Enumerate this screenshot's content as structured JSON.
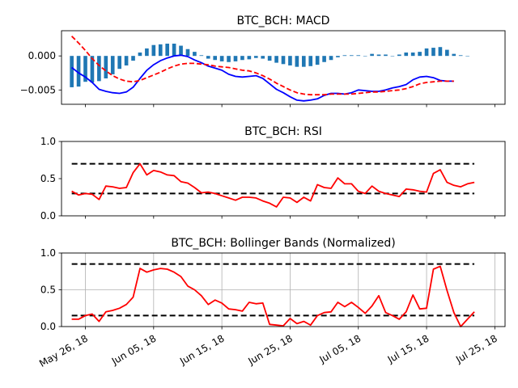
{
  "chart_data": [
    {
      "type": "bar+line",
      "title": "BTC_BCH: MACD",
      "x_start": "2018-05-24",
      "x_interval_days": 1,
      "ylim": [
        -0.0071,
        0.0037
      ],
      "yticks": [
        0.0,
        -0.005
      ],
      "ytick_labels": [
        "0.000",
        "−0.005"
      ],
      "grid": false,
      "series": [
        {
          "kind": "bar",
          "color": "#1f77b4",
          "values": [
            -0.0046,
            -0.0045,
            -0.0038,
            -0.0039,
            -0.0037,
            -0.0033,
            -0.0027,
            -0.0019,
            -0.0014,
            -0.0007,
            0.0005,
            0.0011,
            0.0016,
            0.0017,
            0.0018,
            0.0018,
            0.0015,
            0.001,
            0.0006,
            0.0001,
            -0.0004,
            -0.0006,
            -0.0008,
            -0.0009,
            -0.0008,
            -0.0006,
            -0.0005,
            -0.0003,
            -0.0004,
            -0.0007,
            -0.001,
            -0.0012,
            -0.0014,
            -0.0016,
            -0.0016,
            -0.0015,
            -0.0013,
            -0.0009,
            -0.0006,
            -0.0002,
            0.0001,
            0.0001,
            0.0001,
            0.0,
            0.0003,
            0.0002,
            0.0002,
            0.0,
            0.0002,
            0.0005,
            0.0005,
            0.0006,
            0.0011,
            0.0012,
            0.0013,
            0.0009,
            0.0003,
            0.0001,
            0.0
          ]
        },
        {
          "kind": "line",
          "color": "#0000ff",
          "style": "solid",
          "values": [
            -0.0017,
            -0.0025,
            -0.0031,
            -0.0039,
            -0.0049,
            -0.0052,
            -0.0054,
            -0.0055,
            -0.0053,
            -0.0046,
            -0.0033,
            -0.0021,
            -0.0013,
            -0.0007,
            -0.0003,
            0.0,
            0.0001,
            -0.0001,
            -0.0006,
            -0.001,
            -0.0015,
            -0.0018,
            -0.0021,
            -0.0027,
            -0.003,
            -0.0031,
            -0.003,
            -0.0029,
            -0.0033,
            -0.0041,
            -0.0049,
            -0.0054,
            -0.006,
            -0.0065,
            -0.0066,
            -0.0065,
            -0.0063,
            -0.0058,
            -0.0055,
            -0.0055,
            -0.0056,
            -0.0054,
            -0.005,
            -0.0051,
            -0.0052,
            -0.0052,
            -0.005,
            -0.0047,
            -0.0045,
            -0.0042,
            -0.0035,
            -0.0031,
            -0.003,
            -0.0032,
            -0.0036,
            -0.0037,
            -0.0037
          ]
        },
        {
          "kind": "line",
          "color": "#ff0000",
          "style": "dashed",
          "values": [
            0.0029,
            0.0019,
            0.0008,
            -0.0004,
            -0.0014,
            -0.0022,
            -0.0029,
            -0.0034,
            -0.0037,
            -0.0038,
            -0.0036,
            -0.0032,
            -0.0028,
            -0.0024,
            -0.0019,
            -0.0015,
            -0.0012,
            -0.0011,
            -0.0011,
            -0.0012,
            -0.0013,
            -0.0015,
            -0.0016,
            -0.0017,
            -0.0019,
            -0.0021,
            -0.0022,
            -0.0025,
            -0.0029,
            -0.0034,
            -0.004,
            -0.0045,
            -0.005,
            -0.0054,
            -0.0056,
            -0.0057,
            -0.0057,
            -0.0057,
            -0.0056,
            -0.0056,
            -0.0056,
            -0.0056,
            -0.0055,
            -0.0054,
            -0.0053,
            -0.0053,
            -0.0052,
            -0.0051,
            -0.005,
            -0.0048,
            -0.0045,
            -0.0041,
            -0.0039,
            -0.0038,
            -0.0037,
            -0.0037,
            -0.0037
          ]
        }
      ]
    },
    {
      "type": "line",
      "title": "BTC_BCH: RSI",
      "x_start": "2018-05-24",
      "x_interval_days": 1,
      "ylim": [
        0.0,
        1.0
      ],
      "yticks": [
        0.0,
        0.5,
        1.0
      ],
      "ytick_labels": [
        "0.0",
        "0.5",
        "1.0"
      ],
      "grid": false,
      "reference_lines": [
        0.7,
        0.3
      ],
      "series": [
        {
          "kind": "line",
          "color": "#ff0000",
          "style": "solid",
          "values": [
            0.33,
            0.28,
            0.3,
            0.29,
            0.22,
            0.4,
            0.39,
            0.37,
            0.38,
            0.58,
            0.7,
            0.55,
            0.61,
            0.59,
            0.55,
            0.54,
            0.46,
            0.44,
            0.38,
            0.31,
            0.32,
            0.3,
            0.27,
            0.24,
            0.21,
            0.25,
            0.25,
            0.24,
            0.2,
            0.17,
            0.12,
            0.25,
            0.24,
            0.18,
            0.25,
            0.2,
            0.42,
            0.38,
            0.37,
            0.51,
            0.43,
            0.43,
            0.33,
            0.3,
            0.4,
            0.33,
            0.3,
            0.28,
            0.26,
            0.36,
            0.35,
            0.33,
            0.32,
            0.57,
            0.62,
            0.45,
            0.41,
            0.39,
            0.43,
            0.45
          ]
        }
      ]
    },
    {
      "type": "line",
      "title": "BTC_BCH: Bollinger Bands (Normalized)",
      "x_start": "2018-05-24",
      "x_interval_days": 1,
      "ylim": [
        0.0,
        1.0
      ],
      "yticks": [
        0.0,
        0.5,
        1.0
      ],
      "ytick_labels": [
        "0.0",
        "0.5",
        "1.0"
      ],
      "grid": true,
      "reference_lines": [
        0.85,
        0.15
      ],
      "series": [
        {
          "kind": "line",
          "color": "#ff0000",
          "style": "solid",
          "values": [
            0.1,
            0.1,
            0.15,
            0.17,
            0.07,
            0.2,
            0.22,
            0.25,
            0.3,
            0.4,
            0.79,
            0.74,
            0.77,
            0.79,
            0.78,
            0.74,
            0.68,
            0.55,
            0.5,
            0.42,
            0.3,
            0.36,
            0.32,
            0.24,
            0.23,
            0.21,
            0.33,
            0.31,
            0.32,
            0.03,
            0.02,
            0.01,
            0.11,
            0.04,
            0.07,
            0.02,
            0.15,
            0.19,
            0.2,
            0.33,
            0.27,
            0.33,
            0.26,
            0.18,
            0.28,
            0.42,
            0.19,
            0.15,
            0.1,
            0.2,
            0.43,
            0.24,
            0.25,
            0.78,
            0.82,
            0.49,
            0.19,
            0.0,
            0.1,
            0.2
          ]
        }
      ]
    }
  ],
  "x_axis": {
    "tick_dates": [
      "2018-05-26",
      "2018-06-05",
      "2018-06-15",
      "2018-06-25",
      "2018-07-05",
      "2018-07-15",
      "2018-07-25"
    ],
    "tick_labels": [
      "May 26, 18",
      "Jun 05, 18",
      "Jun 15, 18",
      "Jun 25, 18",
      "Jul 05, 18",
      "Jul 15, 18",
      "Jul 25, 18"
    ]
  },
  "colors": {
    "bars": "#1f77b4",
    "macd_line": "#0000ff",
    "signal_line": "#ff0000",
    "rsi_line": "#ff0000",
    "bollinger_line": "#ff0000",
    "reference_lines": "#000000",
    "grid": "#b0b0b0"
  }
}
